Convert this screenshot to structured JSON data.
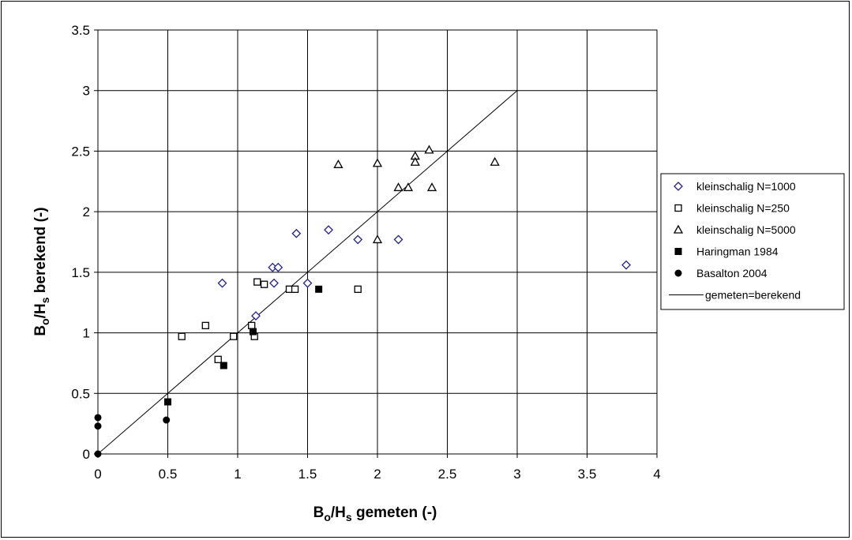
{
  "chart_data": {
    "type": "scatter",
    "xlim": [
      0,
      4
    ],
    "ylim": [
      0,
      3.5
    ],
    "x_ticks": [
      "0",
      "0.5",
      "1",
      "1.5",
      "2",
      "2.5",
      "3",
      "3.5",
      "4"
    ],
    "y_ticks": [
      "0",
      "0.5",
      "1",
      "1.5",
      "2",
      "2.5",
      "3",
      "3.5"
    ],
    "grid": true,
    "legend_position": "right",
    "xlabel": {
      "main": "B",
      "sub1": "o",
      "mid": "/H",
      "sub2": "s",
      "tail": " gemeten (-)"
    },
    "ylabel": {
      "main": "B",
      "sub1": "o",
      "mid": "/H",
      "sub2": "s",
      "tail": " berekend (-)"
    },
    "series": [
      {
        "name": "kleinschalig N=1000",
        "marker": "diamond-open",
        "color": "#1f1f8f",
        "points": [
          [
            0.89,
            1.41
          ],
          [
            1.13,
            1.14
          ],
          [
            1.25,
            1.54
          ],
          [
            1.26,
            1.41
          ],
          [
            1.29,
            1.54
          ],
          [
            1.42,
            1.82
          ],
          [
            1.5,
            1.41
          ],
          [
            1.65,
            1.85
          ],
          [
            1.86,
            1.77
          ],
          [
            2.15,
            1.77
          ],
          [
            3.78,
            1.56
          ]
        ]
      },
      {
        "name": "kleinschalig N=250",
        "marker": "square-open",
        "color": "#000000",
        "points": [
          [
            0.6,
            0.97
          ],
          [
            0.77,
            1.06
          ],
          [
            0.86,
            0.78
          ],
          [
            0.97,
            0.97
          ],
          [
            1.1,
            1.06
          ],
          [
            1.12,
            0.97
          ],
          [
            1.14,
            1.42
          ],
          [
            1.19,
            1.4
          ],
          [
            1.37,
            1.36
          ],
          [
            1.41,
            1.36
          ],
          [
            1.86,
            1.36
          ]
        ]
      },
      {
        "name": "kleinschalig N=5000",
        "marker": "triangle-open",
        "color": "#000000",
        "points": [
          [
            1.72,
            2.39
          ],
          [
            2.0,
            2.4
          ],
          [
            2.0,
            1.77
          ],
          [
            2.15,
            2.2
          ],
          [
            2.22,
            2.2
          ],
          [
            2.27,
            2.46
          ],
          [
            2.27,
            2.41
          ],
          [
            2.37,
            2.51
          ],
          [
            2.39,
            2.2
          ],
          [
            2.84,
            2.41
          ]
        ]
      },
      {
        "name": "Haringman 1984",
        "marker": "square-filled",
        "color": "#000000",
        "points": [
          [
            0.5,
            0.43
          ],
          [
            0.9,
            0.73
          ],
          [
            1.11,
            1.01
          ],
          [
            1.58,
            1.36
          ]
        ]
      },
      {
        "name": "Basalton 2004",
        "marker": "circle-filled",
        "color": "#000000",
        "points": [
          [
            0.0,
            0.3
          ],
          [
            0.0,
            0.23
          ],
          [
            0.0,
            0.0
          ],
          [
            0.49,
            0.28
          ]
        ]
      }
    ],
    "reference_line": {
      "name": "gemeten=berekend",
      "from": [
        0,
        0
      ],
      "to": [
        3,
        3
      ],
      "color": "#000000"
    }
  }
}
